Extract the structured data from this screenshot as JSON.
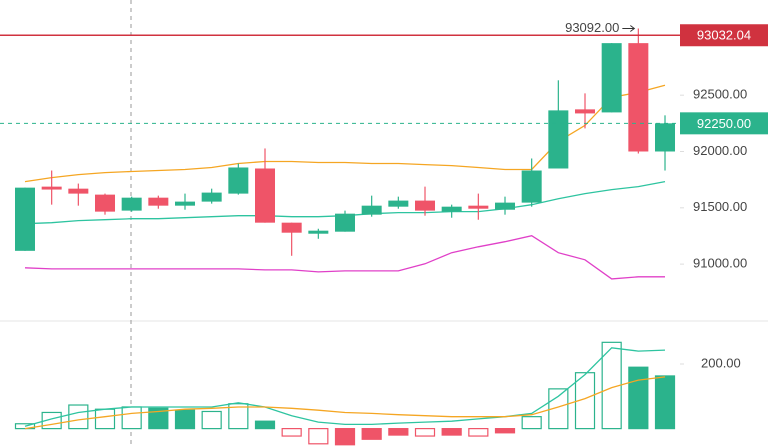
{
  "chart_data": [
    {
      "type": "candlestick",
      "categories": [
        null,
        null,
        null,
        null,
        null,
        null,
        null,
        null,
        null,
        null,
        null,
        null,
        null,
        null,
        null,
        null,
        null,
        null,
        null,
        null,
        null,
        null,
        null,
        null,
        null
      ],
      "open": [
        91118,
        91688,
        91670,
        91617,
        91475,
        91590,
        91519,
        91555,
        91626,
        91849,
        91368,
        91270,
        91288,
        91439,
        91510,
        91564,
        91466,
        91519,
        91483,
        91546,
        91849,
        92374,
        92347,
        92962,
        92000
      ],
      "high": [
        91679,
        91831,
        91715,
        91626,
        91599,
        91608,
        91626,
        91670,
        91893,
        92027,
        91368,
        91314,
        91475,
        91608,
        91599,
        91688,
        91528,
        91626,
        91599,
        91938,
        92632,
        92516,
        92962,
        93092,
        92321
      ],
      "low": [
        91118,
        91528,
        91519,
        91439,
        91466,
        91492,
        91483,
        91537,
        91617,
        91368,
        91074,
        91225,
        91288,
        91421,
        91492,
        91430,
        91412,
        91394,
        91439,
        91510,
        91849,
        92205,
        92347,
        91982,
        91831
      ],
      "close": [
        91679,
        91662,
        91626,
        91466,
        91590,
        91519,
        91555,
        91635,
        91858,
        91368,
        91279,
        91297,
        91448,
        91519,
        91564,
        91475,
        91510,
        91492,
        91546,
        91831,
        92365,
        92338,
        92962,
        92000,
        92250
      ],
      "up_color": "#2bb38c",
      "down_color": "#ef5468",
      "series": [
        {
          "color": "#f5a623",
          "values": [
            91733,
            91768,
            91795,
            91813,
            91822,
            91831,
            91840,
            91858,
            91893,
            91911,
            91911,
            91902,
            91902,
            91893,
            91893,
            91884,
            91875,
            91858,
            91840,
            91840,
            92089,
            92232,
            92481,
            92525,
            92588
          ]
        },
        {
          "color": "#2ec4a0",
          "values": [
            91359,
            91368,
            91386,
            91394,
            91403,
            91403,
            91412,
            91421,
            91430,
            91430,
            91421,
            91421,
            91430,
            91448,
            91457,
            91457,
            91466,
            91466,
            91492,
            91528,
            91581,
            91626,
            91662,
            91688,
            91733
          ]
        },
        {
          "color": "#e040c8",
          "values": [
            90967,
            90958,
            90958,
            90958,
            90958,
            90958,
            90958,
            90958,
            90958,
            90949,
            90949,
            90931,
            90940,
            90940,
            90940,
            91003,
            91101,
            91154,
            91199,
            91252,
            91101,
            91038,
            90869,
            90887,
            90887
          ]
        }
      ],
      "ylim": [
        90495,
        93345
      ],
      "yticks": [
        {
          "value": 91000,
          "label": "91000.00"
        },
        {
          "value": 91500,
          "label": "91500.00"
        },
        {
          "value": 92000,
          "label": "92000.00"
        },
        {
          "value": 92500,
          "label": "92500.00"
        }
      ],
      "price_lines": [
        {
          "value": 93032.04,
          "label": "93032.04",
          "color": "#d0323f",
          "style": "solid"
        },
        {
          "value": 92250,
          "label": "92250.00",
          "color": "#2bb38c",
          "style": "dashed"
        }
      ],
      "max_label": {
        "value": 93092,
        "label": "93092.00"
      }
    },
    {
      "type": "histogram",
      "values": [
        15,
        50,
        73,
        60,
        67,
        63,
        57,
        53,
        77,
        23,
        -23,
        -47,
        -50,
        -33,
        -20,
        -23,
        -20,
        -23,
        -13,
        37,
        123,
        173,
        267,
        190,
        163
      ],
      "hollow": [
        true,
        true,
        true,
        true,
        true,
        false,
        false,
        true,
        true,
        false,
        true,
        true,
        false,
        false,
        false,
        true,
        false,
        true,
        false,
        true,
        true,
        true,
        true,
        false,
        false
      ],
      "up_color": "#2bb38c",
      "down_color": "#ef5468",
      "series": [
        {
          "color": "#2ec4a0",
          "values": [
            7,
            30,
            50,
            60,
            67,
            67,
            67,
            67,
            80,
            67,
            40,
            20,
            13,
            13,
            17,
            20,
            23,
            30,
            37,
            47,
            100,
            167,
            250,
            240,
            243
          ]
        },
        {
          "color": "#f5a623",
          "values": [
            0,
            13,
            27,
            37,
            47,
            53,
            60,
            63,
            67,
            67,
            63,
            57,
            50,
            47,
            43,
            40,
            37,
            37,
            37,
            43,
            67,
            93,
            127,
            150,
            160
          ]
        }
      ],
      "ylim": [
        -60,
        333
      ],
      "yticks": [
        {
          "value": 200,
          "label": "200.00"
        }
      ]
    }
  ]
}
